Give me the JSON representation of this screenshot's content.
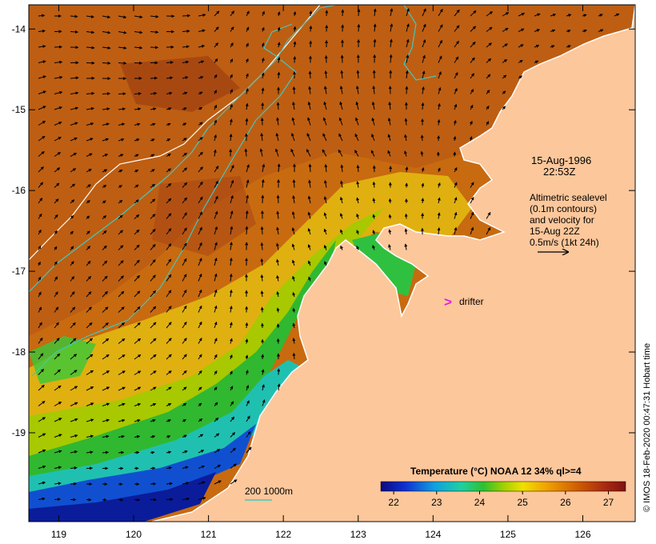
{
  "map": {
    "lon_ticks": [
      "119",
      "120",
      "121",
      "122",
      "123",
      "124",
      "125",
      "126"
    ],
    "lat_ticks": [
      "-14",
      "-15",
      "-16",
      "-17",
      "-18",
      "-19"
    ],
    "lon_range": [
      118.6,
      126.7
    ],
    "lat_range": [
      -20.1,
      -13.7
    ],
    "date_line1": "15-Aug-1996",
    "date_line2": "22:53Z",
    "sealevel_lines": [
      "Altimetric sealevel",
      "(0.1m contours)",
      "and velocity for",
      "15-Aug 22Z",
      "0.5m/s (1kt 24h)"
    ],
    "drifter_label": "drifter",
    "drifter_marker": ">",
    "bathy_label": "200  1000m",
    "credit": "© IMOS 18-Feb-2020 00:47:31 Hobart time",
    "colors": {
      "land": "#fcc79b",
      "bathy_200": "#ffffff",
      "bathy_1000": "#40c8c0",
      "drifter": "#e020e0",
      "arrows": "#000000"
    }
  },
  "colorbar": {
    "title": "Temperature (°C) NOAA 12 34% ql>=4",
    "ticks": [
      "22",
      "23",
      "24",
      "25",
      "26",
      "27"
    ],
    "range": [
      21.7,
      27.4
    ],
    "colors": [
      "#0a0a80",
      "#1030d0",
      "#10a0e0",
      "#20d0a0",
      "#30c030",
      "#a0d000",
      "#f0e000",
      "#f0a000",
      "#d06000",
      "#b03010",
      "#801010"
    ]
  }
}
